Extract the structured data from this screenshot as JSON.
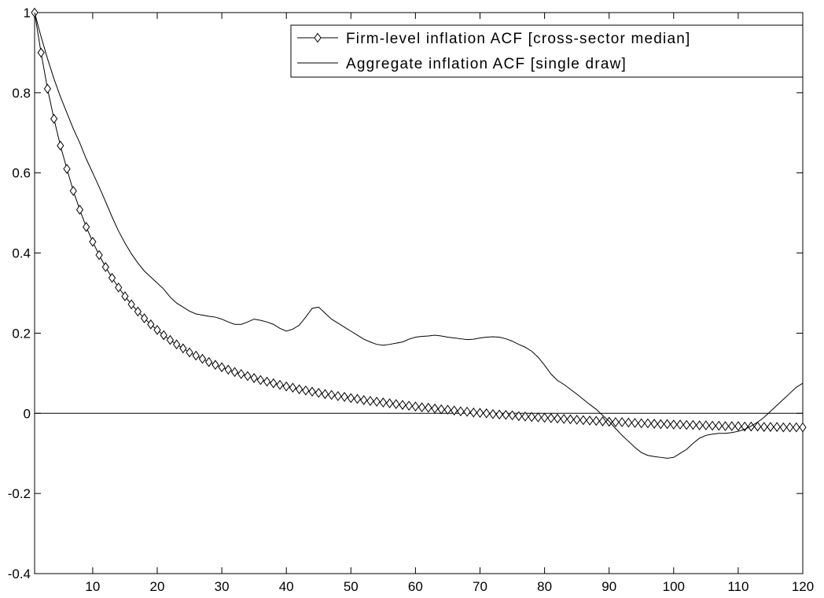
{
  "chart_data": {
    "type": "line",
    "title": "",
    "xlabel": "",
    "ylabel": "",
    "xlim": [
      1,
      120
    ],
    "ylim": [
      -0.4,
      1
    ],
    "x_ticks": [
      10,
      20,
      30,
      40,
      50,
      60,
      70,
      80,
      90,
      100,
      110,
      120
    ],
    "y_ticks": [
      -0.4,
      -0.2,
      0,
      0.2,
      0.4,
      0.6,
      0.8,
      1
    ],
    "y_tick_labels": [
      "-0.4",
      "-0.2",
      "0",
      "0.2",
      "0.4",
      "0.6",
      "0.8",
      "1"
    ],
    "grid": false,
    "zero_line": true,
    "legend_position": "top-right",
    "series": [
      {
        "name": "Firm-level inflation ACF [cross-sector median]",
        "marker": "diamond",
        "color": "#000000",
        "values": [
          1.0,
          0.9,
          0.81,
          0.735,
          0.668,
          0.61,
          0.555,
          0.508,
          0.465,
          0.428,
          0.395,
          0.365,
          0.338,
          0.314,
          0.292,
          0.272,
          0.254,
          0.237,
          0.222,
          0.208,
          0.195,
          0.183,
          0.172,
          0.162,
          0.152,
          0.144,
          0.136,
          0.128,
          0.121,
          0.115,
          0.109,
          0.103,
          0.098,
          0.093,
          0.088,
          0.083,
          0.079,
          0.075,
          0.071,
          0.067,
          0.064,
          0.06,
          0.057,
          0.054,
          0.051,
          0.048,
          0.046,
          0.043,
          0.041,
          0.038,
          0.036,
          0.033,
          0.031,
          0.029,
          0.027,
          0.025,
          0.023,
          0.021,
          0.019,
          0.017,
          0.015,
          0.014,
          0.012,
          0.01,
          0.009,
          0.007,
          0.005,
          0.004,
          0.002,
          0.001,
          0.0,
          -0.002,
          -0.003,
          -0.004,
          -0.005,
          -0.007,
          -0.008,
          -0.009,
          -0.01,
          -0.011,
          -0.012,
          -0.013,
          -0.014,
          -0.015,
          -0.016,
          -0.017,
          -0.018,
          -0.019,
          -0.02,
          -0.021,
          -0.022,
          -0.022,
          -0.023,
          -0.024,
          -0.025,
          -0.025,
          -0.026,
          -0.027,
          -0.027,
          -0.028,
          -0.028,
          -0.029,
          -0.029,
          -0.03,
          -0.03,
          -0.031,
          -0.031,
          -0.032,
          -0.032,
          -0.032,
          -0.033,
          -0.033,
          -0.033,
          -0.034,
          -0.034,
          -0.034,
          -0.035,
          -0.035,
          -0.035,
          -0.035
        ]
      },
      {
        "name": "Aggregate inflation ACF [single draw]",
        "marker": "none",
        "color": "#000000",
        "values": [
          1.0,
          0.94,
          0.885,
          0.835,
          0.79,
          0.75,
          0.71,
          0.675,
          0.635,
          0.6,
          0.565,
          0.528,
          0.49,
          0.455,
          0.425,
          0.398,
          0.375,
          0.355,
          0.34,
          0.325,
          0.31,
          0.29,
          0.275,
          0.265,
          0.255,
          0.248,
          0.245,
          0.242,
          0.24,
          0.235,
          0.228,
          0.222,
          0.222,
          0.228,
          0.235,
          0.232,
          0.228,
          0.222,
          0.212,
          0.205,
          0.21,
          0.22,
          0.24,
          0.262,
          0.265,
          0.25,
          0.235,
          0.225,
          0.215,
          0.205,
          0.195,
          0.185,
          0.178,
          0.172,
          0.17,
          0.172,
          0.175,
          0.178,
          0.185,
          0.19,
          0.192,
          0.193,
          0.195,
          0.193,
          0.19,
          0.188,
          0.186,
          0.184,
          0.185,
          0.188,
          0.19,
          0.191,
          0.19,
          0.186,
          0.18,
          0.172,
          0.165,
          0.155,
          0.14,
          0.12,
          0.098,
          0.082,
          0.072,
          0.06,
          0.048,
          0.035,
          0.022,
          0.01,
          -0.005,
          -0.02,
          -0.038,
          -0.055,
          -0.07,
          -0.085,
          -0.098,
          -0.105,
          -0.108,
          -0.11,
          -0.112,
          -0.11,
          -0.1,
          -0.09,
          -0.075,
          -0.062,
          -0.055,
          -0.052,
          -0.05,
          -0.05,
          -0.048,
          -0.045,
          -0.04,
          -0.032,
          -0.022,
          -0.01,
          0.005,
          0.02,
          0.035,
          0.05,
          0.065,
          0.075
        ]
      }
    ]
  }
}
